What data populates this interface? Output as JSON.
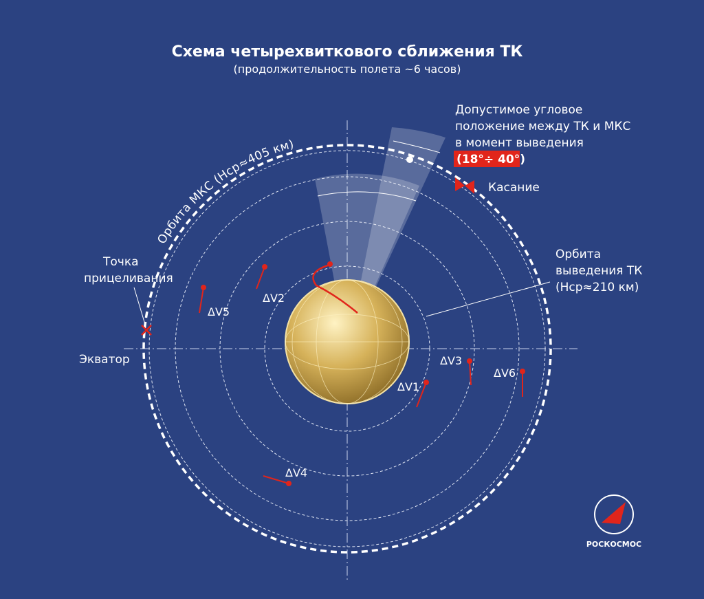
{
  "header": {
    "title": "Схема четырехвиткового сближения ТК",
    "subtitle": "(продолжительность полета ~6 часов)"
  },
  "labels": {
    "angle_lines": [
      "Допустимое угловое",
      "положение между ТК и МКС",
      "в момент выведения"
    ],
    "angle_value": "(18°÷ 40°)",
    "contact": "Касание",
    "iss_orbit": "Орбита МКС (Нср≈405 км)",
    "insertion_orbit": [
      "Орбита",
      "выведения ТК",
      "(Нср≈210 км)"
    ],
    "aiming_point": [
      "Точка",
      "прицеливания"
    ],
    "equator": "Экватор"
  },
  "impulses": [
    "ΔV1",
    "ΔV2",
    "ΔV3",
    "ΔV4",
    "ΔV5",
    "ΔV6"
  ],
  "logo": "РОСКОСМОС"
}
